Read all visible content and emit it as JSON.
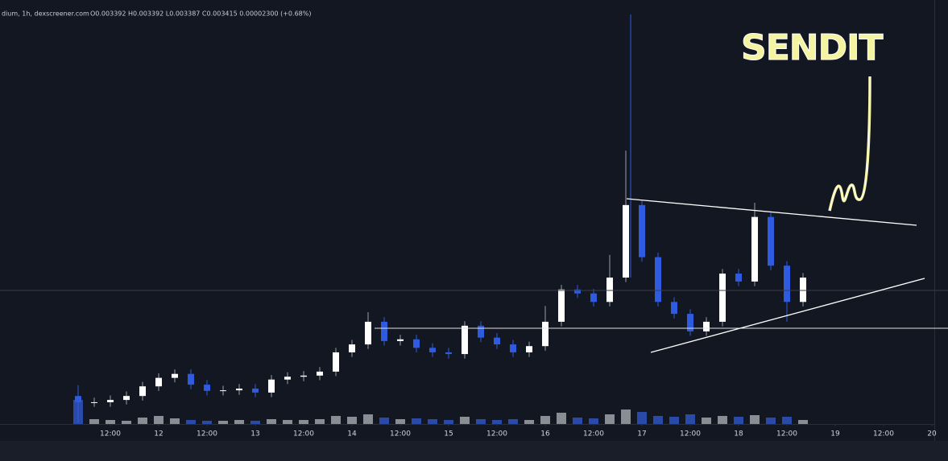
{
  "chart_data": {
    "type": "candlestick",
    "title": "dium, 1h, dexscreener.com",
    "subtitle": "O0.003392 H0.003392 L0.003387 C0.003415 0.00002300 (+0.68%)",
    "annotations": [
      "SENDIT"
    ],
    "x": [
      4,
      8,
      12,
      16,
      20,
      24,
      28,
      32,
      36,
      40,
      44,
      48,
      52,
      56,
      60,
      64,
      68,
      72,
      76,
      80,
      84,
      88,
      92,
      96,
      100,
      104,
      108,
      112,
      116,
      120,
      124,
      128,
      132,
      136,
      140,
      144,
      148,
      152,
      156,
      160,
      164,
      168,
      172,
      176,
      180,
      184
    ],
    "open": [
      0.00131,
      0.0012,
      0.0012,
      0.00124,
      0.00131,
      0.00148,
      0.00163,
      0.0017,
      0.00151,
      0.0014,
      0.00141,
      0.00144,
      0.00137,
      0.0016,
      0.00165,
      0.00167,
      0.00174,
      0.00208,
      0.00222,
      0.00262,
      0.00228,
      0.00231,
      0.00216,
      0.00208,
      0.00205,
      0.00255,
      0.00234,
      0.00222,
      0.00208,
      0.00219,
      0.00262,
      0.00319,
      0.00312,
      0.00297,
      0.0034,
      0.00468,
      0.00376,
      0.00297,
      0.00276,
      0.00245,
      0.00262,
      0.00347,
      0.00333,
      0.00447,
      0.00361,
      0.00297
    ],
    "high": [
      0.0015,
      0.00128,
      0.00132,
      0.00139,
      0.00156,
      0.00171,
      0.00178,
      0.00178,
      0.00159,
      0.00149,
      0.00152,
      0.00152,
      0.00168,
      0.00173,
      0.00175,
      0.00182,
      0.00216,
      0.0023,
      0.00279,
      0.0027,
      0.00239,
      0.00239,
      0.00224,
      0.00216,
      0.00263,
      0.00263,
      0.00242,
      0.0023,
      0.00227,
      0.0029,
      0.00327,
      0.00327,
      0.0032,
      0.0038,
      0.00564,
      0.00476,
      0.00384,
      0.00305,
      0.00284,
      0.0027,
      0.00355,
      0.00355,
      0.00472,
      0.00455,
      0.00369,
      0.00348
    ],
    "low": [
      0.00084,
      0.00112,
      0.00112,
      0.00116,
      0.00123,
      0.0014,
      0.00155,
      0.00143,
      0.00132,
      0.00132,
      0.00133,
      0.00129,
      0.00129,
      0.00152,
      0.00157,
      0.00159,
      0.00166,
      0.002,
      0.00214,
      0.0022,
      0.0022,
      0.00208,
      0.002,
      0.00197,
      0.00197,
      0.00226,
      0.00214,
      0.002,
      0.002,
      0.00211,
      0.00254,
      0.00304,
      0.00289,
      0.00289,
      0.00332,
      0.00368,
      0.00289,
      0.00268,
      0.00237,
      0.00237,
      0.00254,
      0.00325,
      0.00325,
      0.00353,
      0.00262,
      0.00289
    ],
    "close": [
      0.0012,
      0.0012,
      0.00124,
      0.00131,
      0.00148,
      0.00163,
      0.0017,
      0.00151,
      0.0014,
      0.00141,
      0.00144,
      0.00137,
      0.0016,
      0.00165,
      0.00167,
      0.00174,
      0.00208,
      0.00222,
      0.00262,
      0.00228,
      0.00231,
      0.00216,
      0.00208,
      0.00205,
      0.00255,
      0.00234,
      0.00222,
      0.00208,
      0.00219,
      0.00262,
      0.00319,
      0.00312,
      0.00297,
      0.0034,
      0.00468,
      0.00376,
      0.00297,
      0.00276,
      0.00245,
      0.00262,
      0.00347,
      0.00333,
      0.00447,
      0.00361,
      0.00297,
      0.0034
    ],
    "volume": [
      30,
      6,
      5,
      4,
      8,
      10,
      7,
      5,
      4,
      4,
      5,
      4,
      6,
      5,
      5,
      6,
      10,
      9,
      12,
      8,
      6,
      7,
      6,
      5,
      9,
      6,
      5,
      6,
      5,
      10,
      14,
      8,
      7,
      12,
      18,
      15,
      10,
      9,
      12,
      8,
      10,
      9,
      11,
      8,
      9,
      5
    ],
    "up_color": "#ffffff",
    "down_color": "#2e5be0",
    "up_volume_color": "#8a8d93",
    "down_volume_color": "#2a4aa8",
    "xlim": [
      -15.4,
      220
    ],
    "ylim": [
      0.0008156,
      0.008299
    ],
    "xticks": [
      {
        "value": 12,
        "label": "12:00"
      },
      {
        "value": 24,
        "label": "12"
      },
      {
        "value": 36,
        "label": "12:00"
      },
      {
        "value": 48,
        "label": "13"
      },
      {
        "value": 60,
        "label": "12:00"
      },
      {
        "value": 72,
        "label": "14"
      },
      {
        "value": 84,
        "label": "12:00"
      },
      {
        "value": 96,
        "label": "15"
      },
      {
        "value": 108,
        "label": "12:00"
      },
      {
        "value": 120,
        "label": "16"
      },
      {
        "value": 132,
        "label": "12:00"
      },
      {
        "value": 144,
        "label": "17"
      },
      {
        "value": 156,
        "label": "12:00"
      },
      {
        "value": 168,
        "label": "18"
      },
      {
        "value": 180,
        "label": "12:00"
      },
      {
        "value": 192,
        "label": "19"
      },
      {
        "value": 204,
        "label": "12:00"
      },
      {
        "value": 216,
        "label": "20"
      }
    ]
  }
}
